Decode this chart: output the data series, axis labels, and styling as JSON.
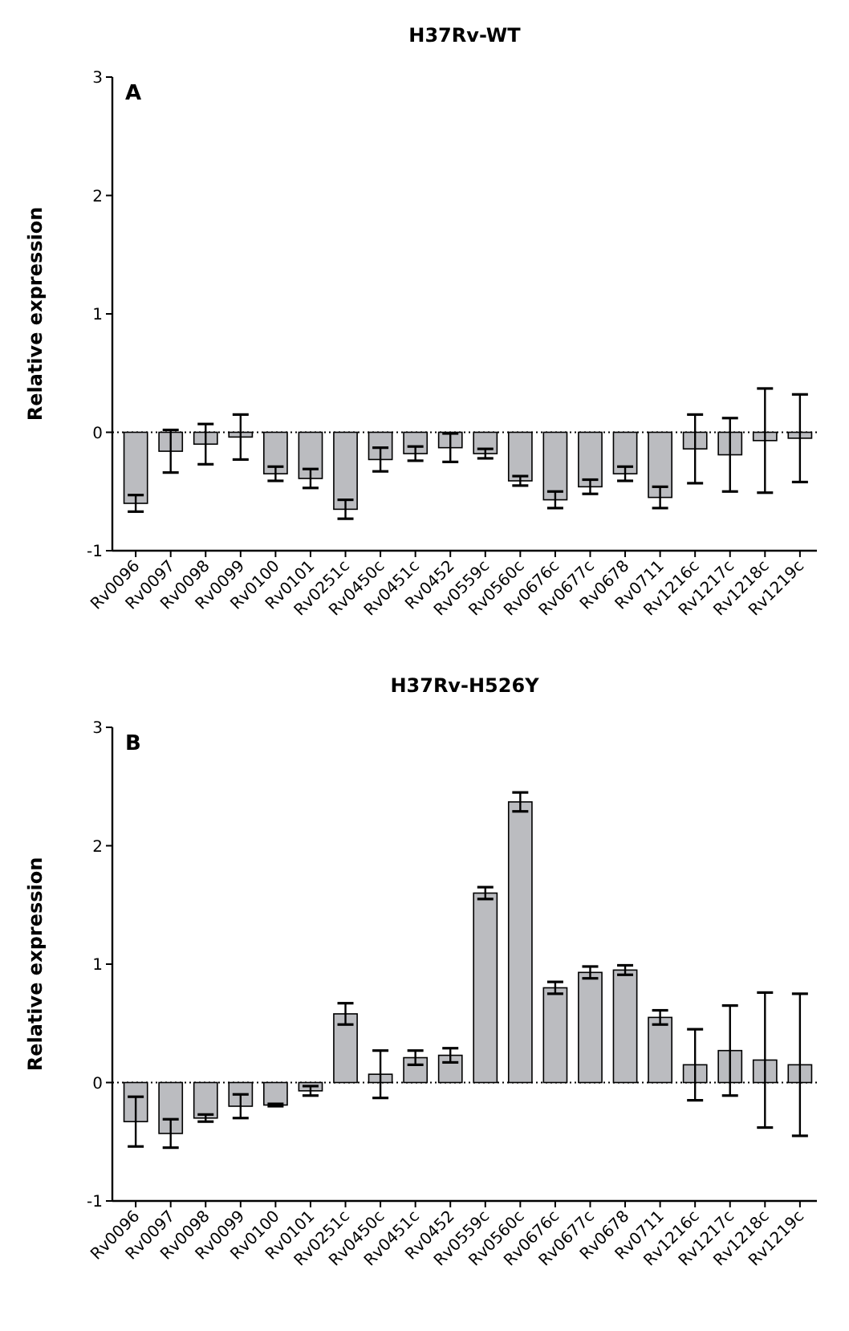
{
  "chart_data": [
    {
      "type": "bar",
      "title": "H37Rv-WT",
      "ylabel": "Relative expression",
      "annotations": [
        "A"
      ],
      "categories": [
        "Rv0096",
        "Rv0097",
        "Rv0098",
        "Rv0099",
        "Rv0100",
        "Rv0101",
        "Rv0251c",
        "Rv0450c",
        "Rv0451c",
        "Rv0452",
        "Rv0559c",
        "Rv0560c",
        "Rv0676c",
        "Rv0677c",
        "Rv0678",
        "Rv0711",
        "Rv1216c",
        "Rv1217c",
        "Rv1218c",
        "Rv1219c"
      ],
      "values": [
        -0.6,
        -0.16,
        -0.1,
        -0.04,
        -0.35,
        -0.39,
        -0.65,
        -0.23,
        -0.18,
        -0.13,
        -0.18,
        -0.41,
        -0.57,
        -0.46,
        -0.35,
        -0.55,
        -0.14,
        -0.19,
        -0.07,
        -0.05
      ],
      "errors": [
        0.07,
        0.18,
        0.17,
        0.19,
        0.06,
        0.08,
        0.08,
        0.1,
        0.06,
        0.12,
        0.04,
        0.04,
        0.07,
        0.06,
        0.06,
        0.09,
        0.29,
        0.31,
        0.44,
        0.37
      ],
      "color": "#bbbcc0",
      "ylim": [
        -1,
        3
      ],
      "yticks": [
        -1,
        0,
        1,
        2,
        3
      ],
      "grid": false,
      "ref_lines": [
        {
          "axis": "y",
          "value": 0,
          "line_style": "dotted",
          "color": "#000000"
        }
      ]
    },
    {
      "type": "bar",
      "title": "H37Rv-H526Y",
      "ylabel": "Relative expression",
      "annotations": [
        "B"
      ],
      "categories": [
        "Rv0096",
        "Rv0097",
        "Rv0098",
        "Rv0099",
        "Rv0100",
        "Rv0101",
        "Rv0251c",
        "Rv0450c",
        "Rv0451c",
        "Rv0452",
        "Rv0559c",
        "Rv0560c",
        "Rv0676c",
        "Rv0677c",
        "Rv0678",
        "Rv0711",
        "Rv1216c",
        "Rv1217c",
        "Rv1218c",
        "Rv1219c"
      ],
      "values": [
        -0.33,
        -0.43,
        -0.3,
        -0.2,
        -0.19,
        -0.07,
        0.58,
        0.07,
        0.21,
        0.23,
        1.6,
        2.37,
        0.8,
        0.93,
        0.95,
        0.55,
        0.15,
        0.27,
        0.19,
        0.15
      ],
      "errors": [
        0.21,
        0.12,
        0.03,
        0.1,
        0.01,
        0.04,
        0.09,
        0.2,
        0.06,
        0.06,
        0.05,
        0.08,
        0.05,
        0.05,
        0.04,
        0.06,
        0.3,
        0.38,
        0.57,
        0.6
      ],
      "color": "#bbbcc0",
      "ylim": [
        -1,
        3
      ],
      "yticks": [
        -1,
        0,
        1,
        2,
        3
      ],
      "grid": false,
      "ref_lines": [
        {
          "axis": "y",
          "value": 0,
          "line_style": "dotted",
          "color": "#000000"
        }
      ]
    }
  ]
}
